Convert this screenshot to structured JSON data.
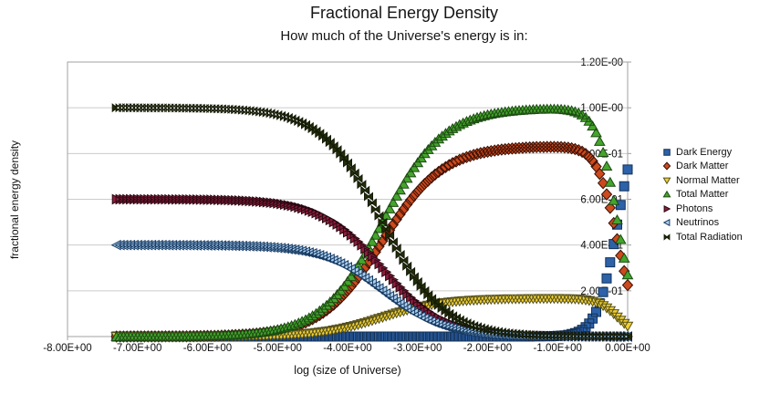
{
  "chart_data": {
    "type": "scatter",
    "title": "Fractional Energy Density",
    "subtitle": "How much of the Universe's energy is in:",
    "xlabel": "log (size of Universe)",
    "ylabel": "fractional energy density",
    "grid": "horizontal",
    "legend_position": "right",
    "x_axis": {
      "min": -8,
      "max": 0,
      "ticks": [
        {
          "value": -8,
          "label": "-8.00E+00"
        },
        {
          "value": -7,
          "label": "-7.00E+00"
        },
        {
          "value": -6,
          "label": "-6.00E+00"
        },
        {
          "value": -5,
          "label": "-5.00E+00"
        },
        {
          "value": -4,
          "label": "-4.00E+00"
        },
        {
          "value": -3,
          "label": "-3.00E+00"
        },
        {
          "value": -2,
          "label": "-2.00E+00"
        },
        {
          "value": -1,
          "label": "-1.00E+00"
        },
        {
          "value": 0,
          "label": "0.00E+00"
        }
      ]
    },
    "y_axis": {
      "min": 0,
      "max": 1.2,
      "ticks": [
        {
          "value": 0.2,
          "label": "2.00E-01"
        },
        {
          "value": 0.4,
          "label": "4.00E-01"
        },
        {
          "value": 0.6,
          "label": "6.00E-01"
        },
        {
          "value": 0.8,
          "label": "8.00E-01"
        },
        {
          "value": 1.0,
          "label": "1.00E-00"
        },
        {
          "value": 1.2,
          "label": "1.20E-00"
        }
      ]
    },
    "sampling": {
      "x_start": -7.3,
      "x_end": 0,
      "x_step": 0.05
    },
    "model": "fraction(x) = omega * 10^(density_exponent * x) / sum over non-composite series; composite series = sum of component fractions; x = log10(scale factor)",
    "series": [
      {
        "name": "Dark Energy",
        "marker": "square",
        "fill": "#2D61A8",
        "stroke": "#123156",
        "omega": 0.73,
        "density_exponent": 0,
        "value_at_left": 0.0,
        "value_at_right": 0.73
      },
      {
        "name": "Dark Matter",
        "marker": "diamond",
        "fill": "#CC4A1E",
        "stroke": "#3A1005",
        "omega": 0.225,
        "density_exponent": -3,
        "value_at_left": 0.0,
        "value_at_right": 0.225
      },
      {
        "name": "Normal Matter",
        "marker": "triangle-down",
        "fill": "#EFCF33",
        "stroke": "#55501C",
        "omega": 0.045,
        "density_exponent": -3,
        "value_at_left": 0.0,
        "value_at_right": 0.045
      },
      {
        "name": "Total Matter",
        "marker": "triangle-up",
        "fill": "#44A42C",
        "stroke": "#1C4A12",
        "omega": 0.27,
        "density_exponent": -3,
        "composite": true,
        "components": [
          "Dark Matter",
          "Normal Matter"
        ],
        "value_at_left": 0.0,
        "value_at_right": 0.27
      },
      {
        "name": "Photons",
        "marker": "triangle-right",
        "fill": "#8C1E3C",
        "stroke": "#2A0812",
        "omega": 5.1e-05,
        "density_exponent": -4,
        "value_at_left": 0.6,
        "value_at_right": 0.0
      },
      {
        "name": "Neutrinos",
        "marker": "triangle-left",
        "fill": "#ABCFEE",
        "stroke": "#173A63",
        "omega": 3.4e-05,
        "density_exponent": -4,
        "value_at_left": 0.4,
        "value_at_right": 0.0
      },
      {
        "name": "Total Radiation",
        "marker": "bowtie",
        "fill": "#222D0A",
        "stroke": "#141A05",
        "omega": 8.5e-05,
        "density_exponent": -4,
        "composite": true,
        "components": [
          "Photons",
          "Neutrinos"
        ],
        "value_at_left": 1.0,
        "value_at_right": 0.0
      }
    ],
    "style": {
      "background": "#FFFFFF",
      "gridline_color": "#CBCBCB",
      "axis_color": "#A0A0A0",
      "text_color": "#111111"
    }
  }
}
